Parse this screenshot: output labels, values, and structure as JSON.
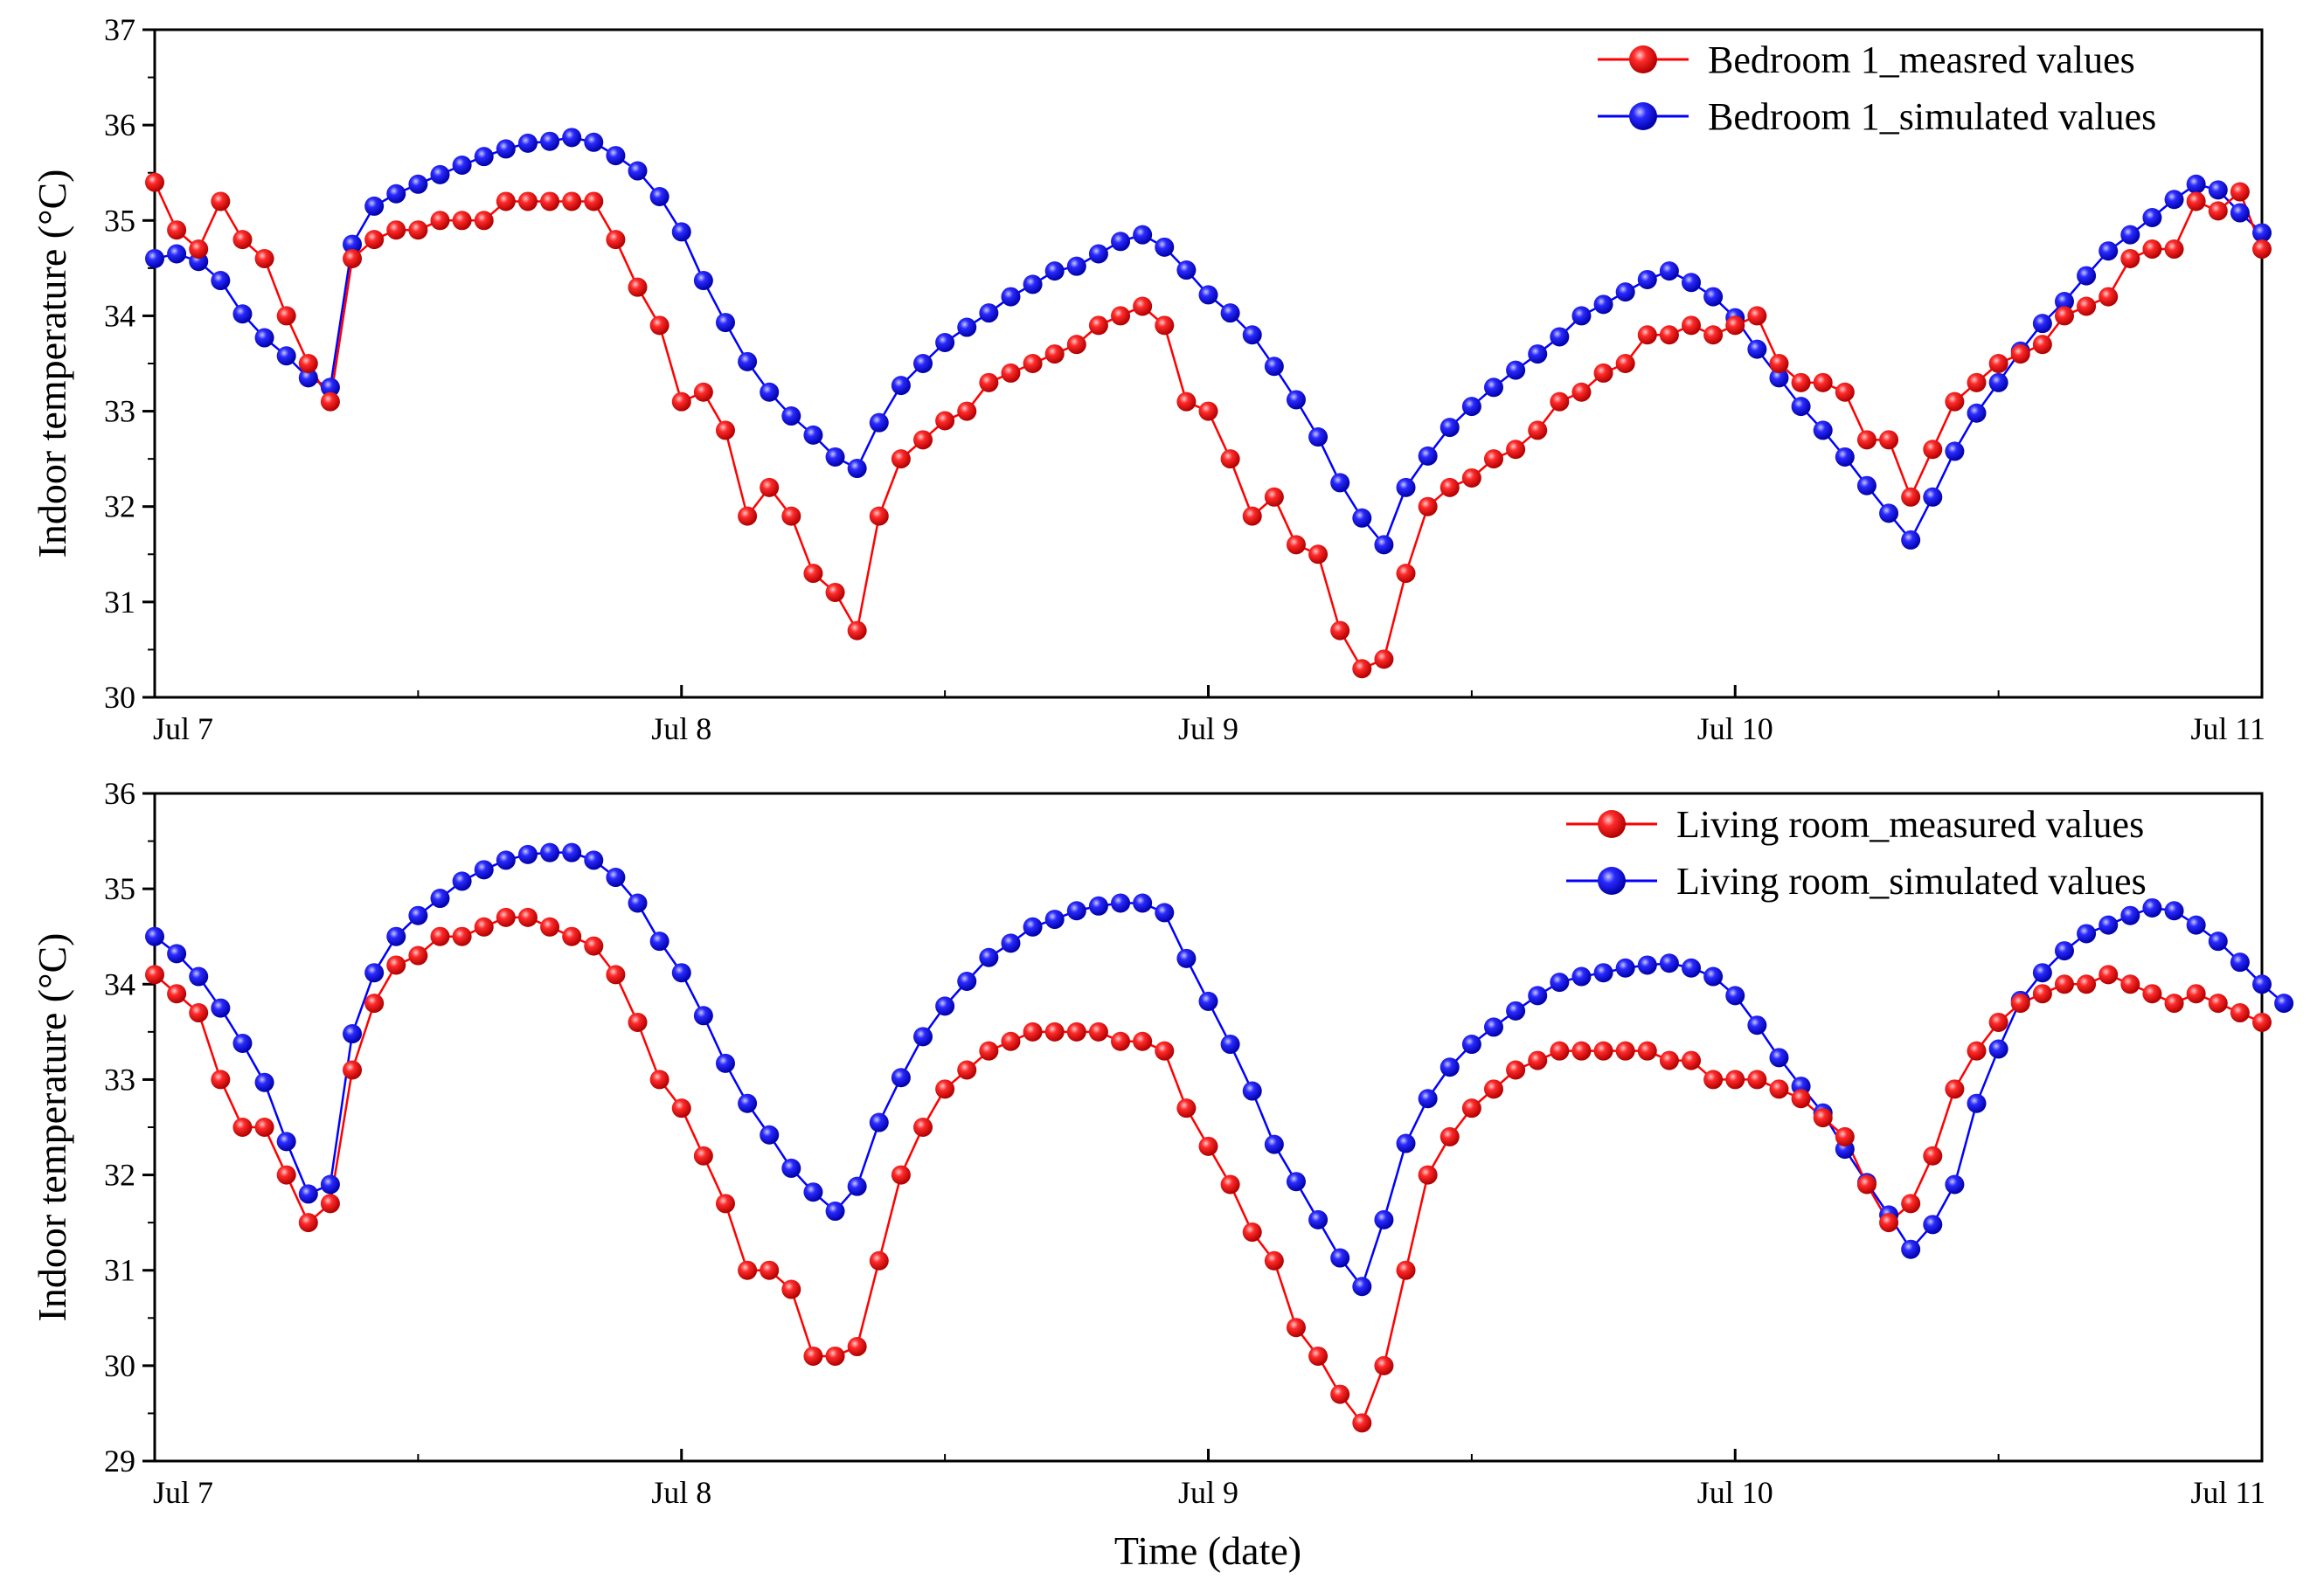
{
  "chart_data": [
    {
      "type": "line",
      "ylabel": "Indoor temperature (°C)",
      "xlabel": "",
      "x_unit": "hours from Jul 7 00:00",
      "xlim": [
        0,
        96
      ],
      "ylim": [
        30,
        37
      ],
      "yticks": [
        30,
        31,
        32,
        33,
        34,
        35,
        36,
        37
      ],
      "xticks": [
        {
          "pos": 0,
          "label": "Jul 7"
        },
        {
          "pos": 24,
          "label": "Jul 8"
        },
        {
          "pos": 48,
          "label": "Jul 9"
        },
        {
          "pos": 72,
          "label": "Jul 10"
        },
        {
          "pos": 96,
          "label": "Jul 11"
        }
      ],
      "legend_position": "top-right",
      "series": [
        {
          "name": "Bedroom 1_measred values",
          "color": "#ff0000",
          "values": [
            35.4,
            34.9,
            34.7,
            35.2,
            34.8,
            34.6,
            34.0,
            33.5,
            33.1,
            34.6,
            34.8,
            34.9,
            34.9,
            35.0,
            35.0,
            35.0,
            35.2,
            35.2,
            35.2,
            35.2,
            35.2,
            34.8,
            34.3,
            33.9,
            33.1,
            33.2,
            32.8,
            31.9,
            32.2,
            31.9,
            31.3,
            31.1,
            30.7,
            31.9,
            32.5,
            32.7,
            32.9,
            33.0,
            33.3,
            33.4,
            33.5,
            33.6,
            33.7,
            33.9,
            34.0,
            34.1,
            33.9,
            33.1,
            33.0,
            32.5,
            31.9,
            32.1,
            31.6,
            31.5,
            30.7,
            30.3,
            30.4,
            31.3,
            32.0,
            32.2,
            32.3,
            32.5,
            32.6,
            32.8,
            33.1,
            33.2,
            33.4,
            33.5,
            33.8,
            33.8,
            33.9,
            33.8,
            33.9,
            34.0,
            33.5,
            33.3,
            33.3,
            33.2,
            32.7,
            32.7,
            32.1,
            32.6,
            33.1,
            33.3,
            33.5,
            33.6,
            33.7,
            34.0,
            34.1,
            34.2,
            34.6,
            34.7,
            34.7,
            35.2,
            35.1,
            35.3,
            34.7
          ]
        },
        {
          "name": "Bedroom 1_simulated values",
          "color": "#0000ff",
          "values": [
            34.6,
            34.65,
            34.57,
            34.37,
            34.02,
            33.77,
            33.58,
            33.35,
            33.25,
            34.75,
            35.15,
            35.28,
            35.38,
            35.48,
            35.58,
            35.67,
            35.75,
            35.81,
            35.83,
            35.87,
            35.82,
            35.68,
            35.52,
            35.25,
            34.88,
            34.37,
            33.93,
            33.52,
            33.2,
            32.95,
            32.75,
            32.52,
            32.4,
            32.88,
            33.27,
            33.5,
            33.72,
            33.88,
            34.03,
            34.2,
            34.33,
            34.47,
            34.52,
            34.65,
            34.78,
            34.85,
            34.72,
            34.48,
            34.22,
            34.03,
            33.8,
            33.47,
            33.12,
            32.73,
            32.25,
            31.88,
            31.6,
            32.2,
            32.53,
            32.83,
            33.05,
            33.25,
            33.43,
            33.6,
            33.78,
            34.0,
            34.12,
            34.25,
            34.38,
            34.47,
            34.35,
            34.2,
            33.98,
            33.65,
            33.35,
            33.05,
            32.8,
            32.52,
            32.22,
            31.93,
            31.65,
            32.1,
            32.58,
            32.98,
            33.3,
            33.63,
            33.92,
            34.15,
            34.42,
            34.68,
            34.85,
            35.03,
            35.22,
            35.38,
            35.32,
            35.08,
            34.87
          ]
        }
      ]
    },
    {
      "type": "line",
      "ylabel": "Indoor temperature (°C)",
      "xlabel": "Time (date)",
      "x_unit": "hours from Jul 7 00:00",
      "xlim": [
        0,
        96
      ],
      "ylim": [
        29,
        36
      ],
      "yticks": [
        29,
        30,
        31,
        32,
        33,
        34,
        35,
        36
      ],
      "xticks": [
        {
          "pos": 0,
          "label": "Jul 7"
        },
        {
          "pos": 24,
          "label": "Jul 8"
        },
        {
          "pos": 48,
          "label": "Jul 9"
        },
        {
          "pos": 72,
          "label": "Jul 10"
        },
        {
          "pos": 96,
          "label": "Jul 11"
        }
      ],
      "legend_position": "top-right",
      "series": [
        {
          "name": "Living room_measured values",
          "color": "#ff0000",
          "values": [
            34.1,
            33.9,
            33.7,
            33.0,
            32.5,
            32.5,
            32.0,
            31.5,
            31.7,
            33.1,
            33.8,
            34.2,
            34.3,
            34.5,
            34.5,
            34.6,
            34.7,
            34.7,
            34.6,
            34.5,
            34.4,
            34.1,
            33.6,
            33.0,
            32.7,
            32.2,
            31.7,
            31.0,
            31.0,
            30.8,
            30.1,
            30.1,
            30.2,
            31.1,
            32.0,
            32.5,
            32.9,
            33.1,
            33.3,
            33.4,
            33.5,
            33.5,
            33.5,
            33.5,
            33.4,
            33.4,
            33.3,
            32.7,
            32.3,
            31.9,
            31.4,
            31.1,
            30.4,
            30.1,
            29.7,
            29.4,
            30.0,
            31.0,
            32.0,
            32.4,
            32.7,
            32.9,
            33.1,
            33.2,
            33.3,
            33.3,
            33.3,
            33.3,
            33.3,
            33.2,
            33.2,
            33.0,
            33.0,
            33.0,
            32.9,
            32.8,
            32.6,
            32.4,
            31.9,
            31.5,
            31.7,
            32.2,
            32.9,
            33.3,
            33.6,
            33.8,
            33.9,
            34.0,
            34.0,
            34.1,
            34.0,
            33.9,
            33.8,
            33.9,
            33.8,
            33.7,
            33.6
          ]
        },
        {
          "name": "Living room_simulated values",
          "color": "#0000ff",
          "values": [
            34.5,
            34.32,
            34.08,
            33.75,
            33.38,
            32.97,
            32.35,
            31.8,
            31.9,
            33.48,
            34.12,
            34.5,
            34.72,
            34.9,
            35.08,
            35.2,
            35.3,
            35.36,
            35.38,
            35.38,
            35.3,
            35.12,
            34.85,
            34.45,
            34.12,
            33.67,
            33.17,
            32.75,
            32.42,
            32.07,
            31.82,
            31.62,
            31.88,
            32.55,
            33.02,
            33.45,
            33.77,
            34.03,
            34.28,
            34.43,
            34.6,
            34.68,
            34.77,
            34.82,
            34.85,
            34.85,
            34.75,
            34.27,
            33.82,
            33.37,
            32.88,
            32.32,
            31.93,
            31.53,
            31.13,
            30.83,
            31.53,
            32.33,
            32.8,
            33.13,
            33.37,
            33.55,
            33.72,
            33.88,
            34.02,
            34.08,
            34.12,
            34.17,
            34.2,
            34.22,
            34.17,
            34.08,
            33.88,
            33.57,
            33.23,
            32.93,
            32.65,
            32.27,
            31.92,
            31.58,
            31.22,
            31.48,
            31.9,
            32.75,
            33.32,
            33.83,
            34.12,
            34.35,
            34.53,
            34.62,
            34.72,
            34.8,
            34.77,
            34.62,
            34.45,
            34.23,
            34.0,
            33.8
          ]
        }
      ]
    }
  ]
}
